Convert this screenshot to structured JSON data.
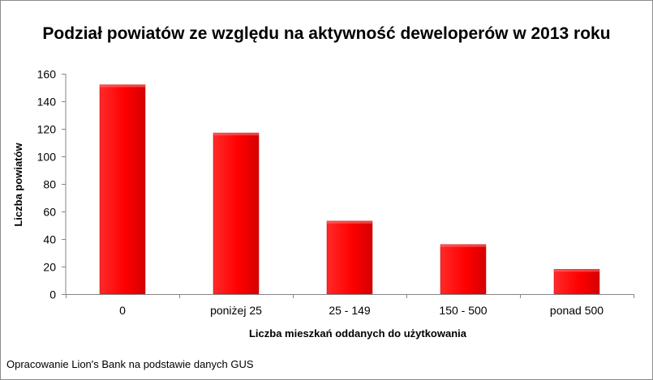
{
  "chart_data": {
    "type": "bar",
    "title": "Podział powiatów ze względu na aktywność deweloperów w 2013 roku",
    "xlabel": "Liczba  mieszkań  oddanych  do  użytkowania",
    "ylabel": "Liczba  powiatów",
    "categories": [
      "0",
      "poniżej 25",
      "25 - 149",
      "150 - 500",
      "ponad 500"
    ],
    "values": [
      152,
      117,
      53,
      36,
      18
    ],
    "ylim": [
      0,
      160
    ],
    "yticks": [
      0,
      20,
      40,
      60,
      80,
      100,
      120,
      140,
      160
    ],
    "bar_color": "#ff0000",
    "grid": false,
    "legend": "none"
  },
  "footer": {
    "source": "Opracowanie Lion's Bank na podstawie danych GUS"
  }
}
